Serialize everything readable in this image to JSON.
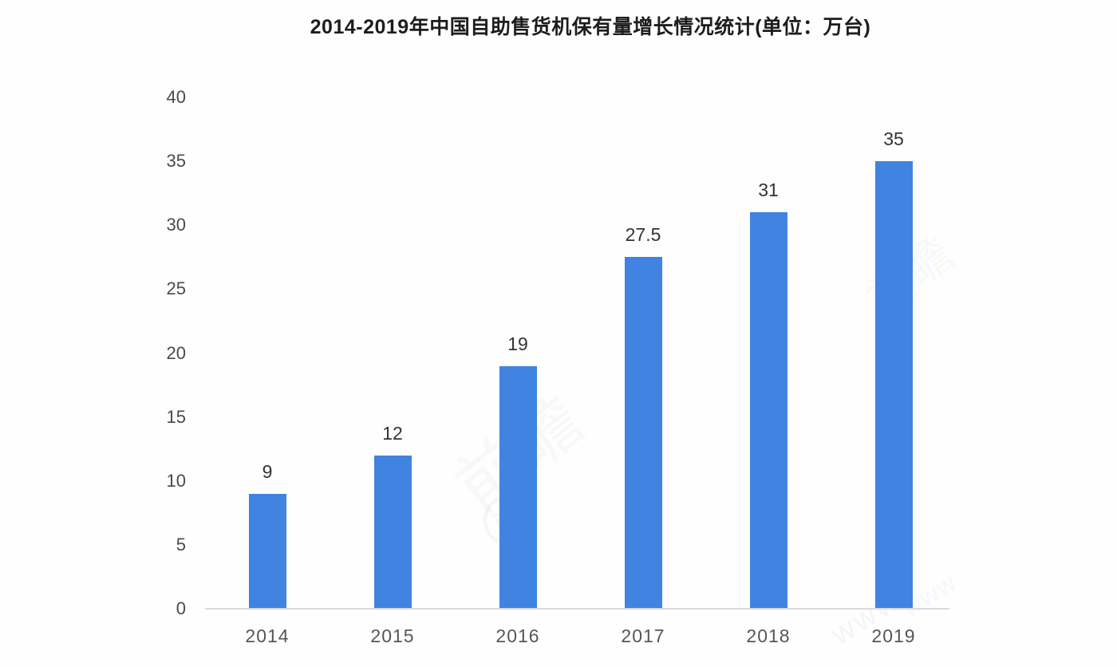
{
  "chart_data": {
    "type": "bar",
    "title": "2014-2019年中国自助售货机保有量增长情况统计(单位：万台)",
    "categories": [
      "2014",
      "2015",
      "2016",
      "2017",
      "2018",
      "2019"
    ],
    "values": [
      9,
      12,
      19,
      27.5,
      31,
      35
    ],
    "value_labels": [
      "9",
      "12",
      "19",
      "27.5",
      "31",
      "35"
    ],
    "yticks": [
      0,
      5,
      10,
      15,
      20,
      25,
      30,
      35,
      40
    ],
    "ylim": [
      0,
      40
    ],
    "xlabel": "",
    "ylabel": "",
    "bar_color": "#4183e0",
    "axis_line_color": "#dadada",
    "grid": false,
    "legend_position": "none"
  },
  "watermark": {
    "text": "前瞻",
    "logo_char": "前",
    "letters": "WWW"
  }
}
